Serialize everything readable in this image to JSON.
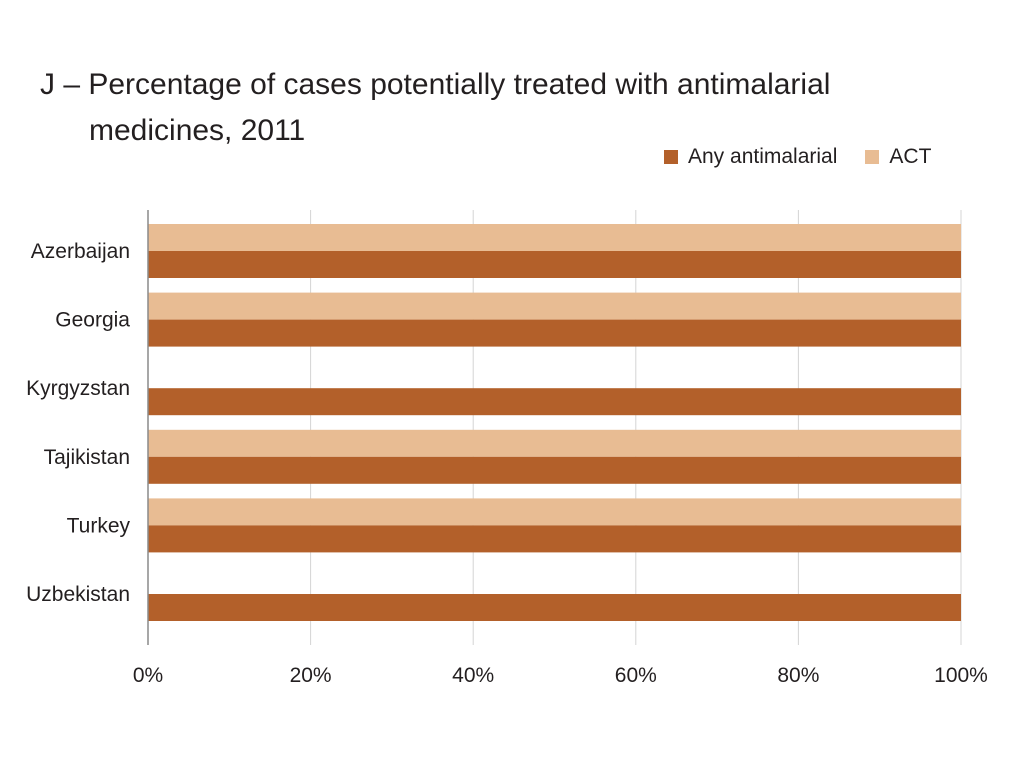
{
  "chart_data": {
    "type": "bar",
    "orientation": "horizontal",
    "title_line1": "J – Percentage of cases potentially treated with antimalarial",
    "title_line2": "medicines, 2011",
    "categories": [
      "Azerbaijan",
      "Georgia",
      "Kyrgyzstan",
      "Tajikistan",
      "Turkey",
      "Uzbekistan"
    ],
    "series": [
      {
        "name": "Any antimalarial",
        "color": "#b3602a",
        "values": [
          100,
          100,
          100,
          100,
          100,
          100
        ]
      },
      {
        "name": "ACT",
        "color": "#e8bc93",
        "values": [
          100,
          100,
          null,
          100,
          100,
          null
        ]
      }
    ],
    "xticks": [
      "0%",
      "20%",
      "40%",
      "60%",
      "80%",
      "100%"
    ],
    "xlim": [
      0,
      100
    ],
    "grid": "vertical",
    "legend_position": "top-right"
  }
}
